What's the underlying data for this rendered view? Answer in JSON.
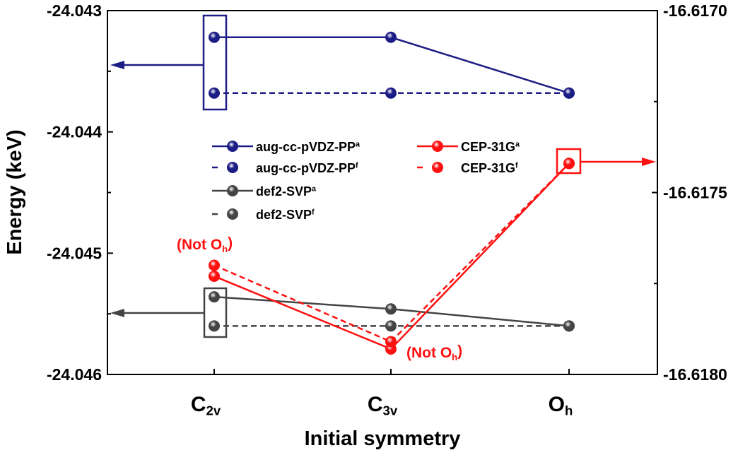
{
  "chart_data": {
    "type": "line",
    "xlabel": "Initial symmetry",
    "ylabel": "Energy (keV)",
    "categories": [
      {
        "main": "C",
        "sub": "2v"
      },
      {
        "main": "C",
        "sub": "3v"
      },
      {
        "main": "O",
        "sub": "h"
      }
    ],
    "y_left": {
      "ylim": [
        -24.046,
        -24.043
      ],
      "ticks": [
        "-24.043",
        "-24.044",
        "-24.045",
        "-24.046"
      ]
    },
    "y_right": {
      "ylim": [
        -16.618,
        -16.617
      ],
      "ticks": [
        "-16.6170",
        "-16.6175",
        "-16.6180"
      ]
    },
    "grid": false,
    "legend_placement": "center",
    "series": [
      {
        "name": "aug-cc-pVDZ-PP",
        "sup": "a",
        "axis": "left",
        "dash": false,
        "color": "#1c1c86",
        "values": [
          -24.04322,
          -24.04322,
          -24.04368
        ]
      },
      {
        "name": "aug-cc-pVDZ-PP",
        "sup": "f",
        "axis": "left",
        "dash": true,
        "color": "#1c1c86",
        "values": [
          -24.04368,
          -24.04368,
          -24.04368
        ]
      },
      {
        "name": "def2-SVP",
        "sup": "a",
        "axis": "left",
        "dash": false,
        "color": "#444444",
        "values": [
          -24.04536,
          -24.04546,
          -24.0456
        ]
      },
      {
        "name": "def2-SVP",
        "sup": "f",
        "axis": "left",
        "dash": true,
        "color": "#444444",
        "values": [
          -24.0456,
          -24.0456,
          -24.0456
        ]
      },
      {
        "name": "CEP-31G",
        "sup": "a",
        "axis": "right",
        "dash": false,
        "color": "#ff1010",
        "values": [
          -16.61773,
          -16.61793,
          -16.61742
        ]
      },
      {
        "name": "CEP-31G",
        "sup": "f",
        "axis": "right",
        "dash": true,
        "color": "#ff1010",
        "values": [
          -16.6177,
          -16.61791,
          -16.61742
        ]
      }
    ],
    "annotations": [
      {
        "main": "(Not O",
        "sub": "h",
        "end": ")",
        "near": "C2v"
      },
      {
        "main": "(Not O",
        "sub": "h",
        "end": ")",
        "near": "C3v"
      }
    ]
  }
}
